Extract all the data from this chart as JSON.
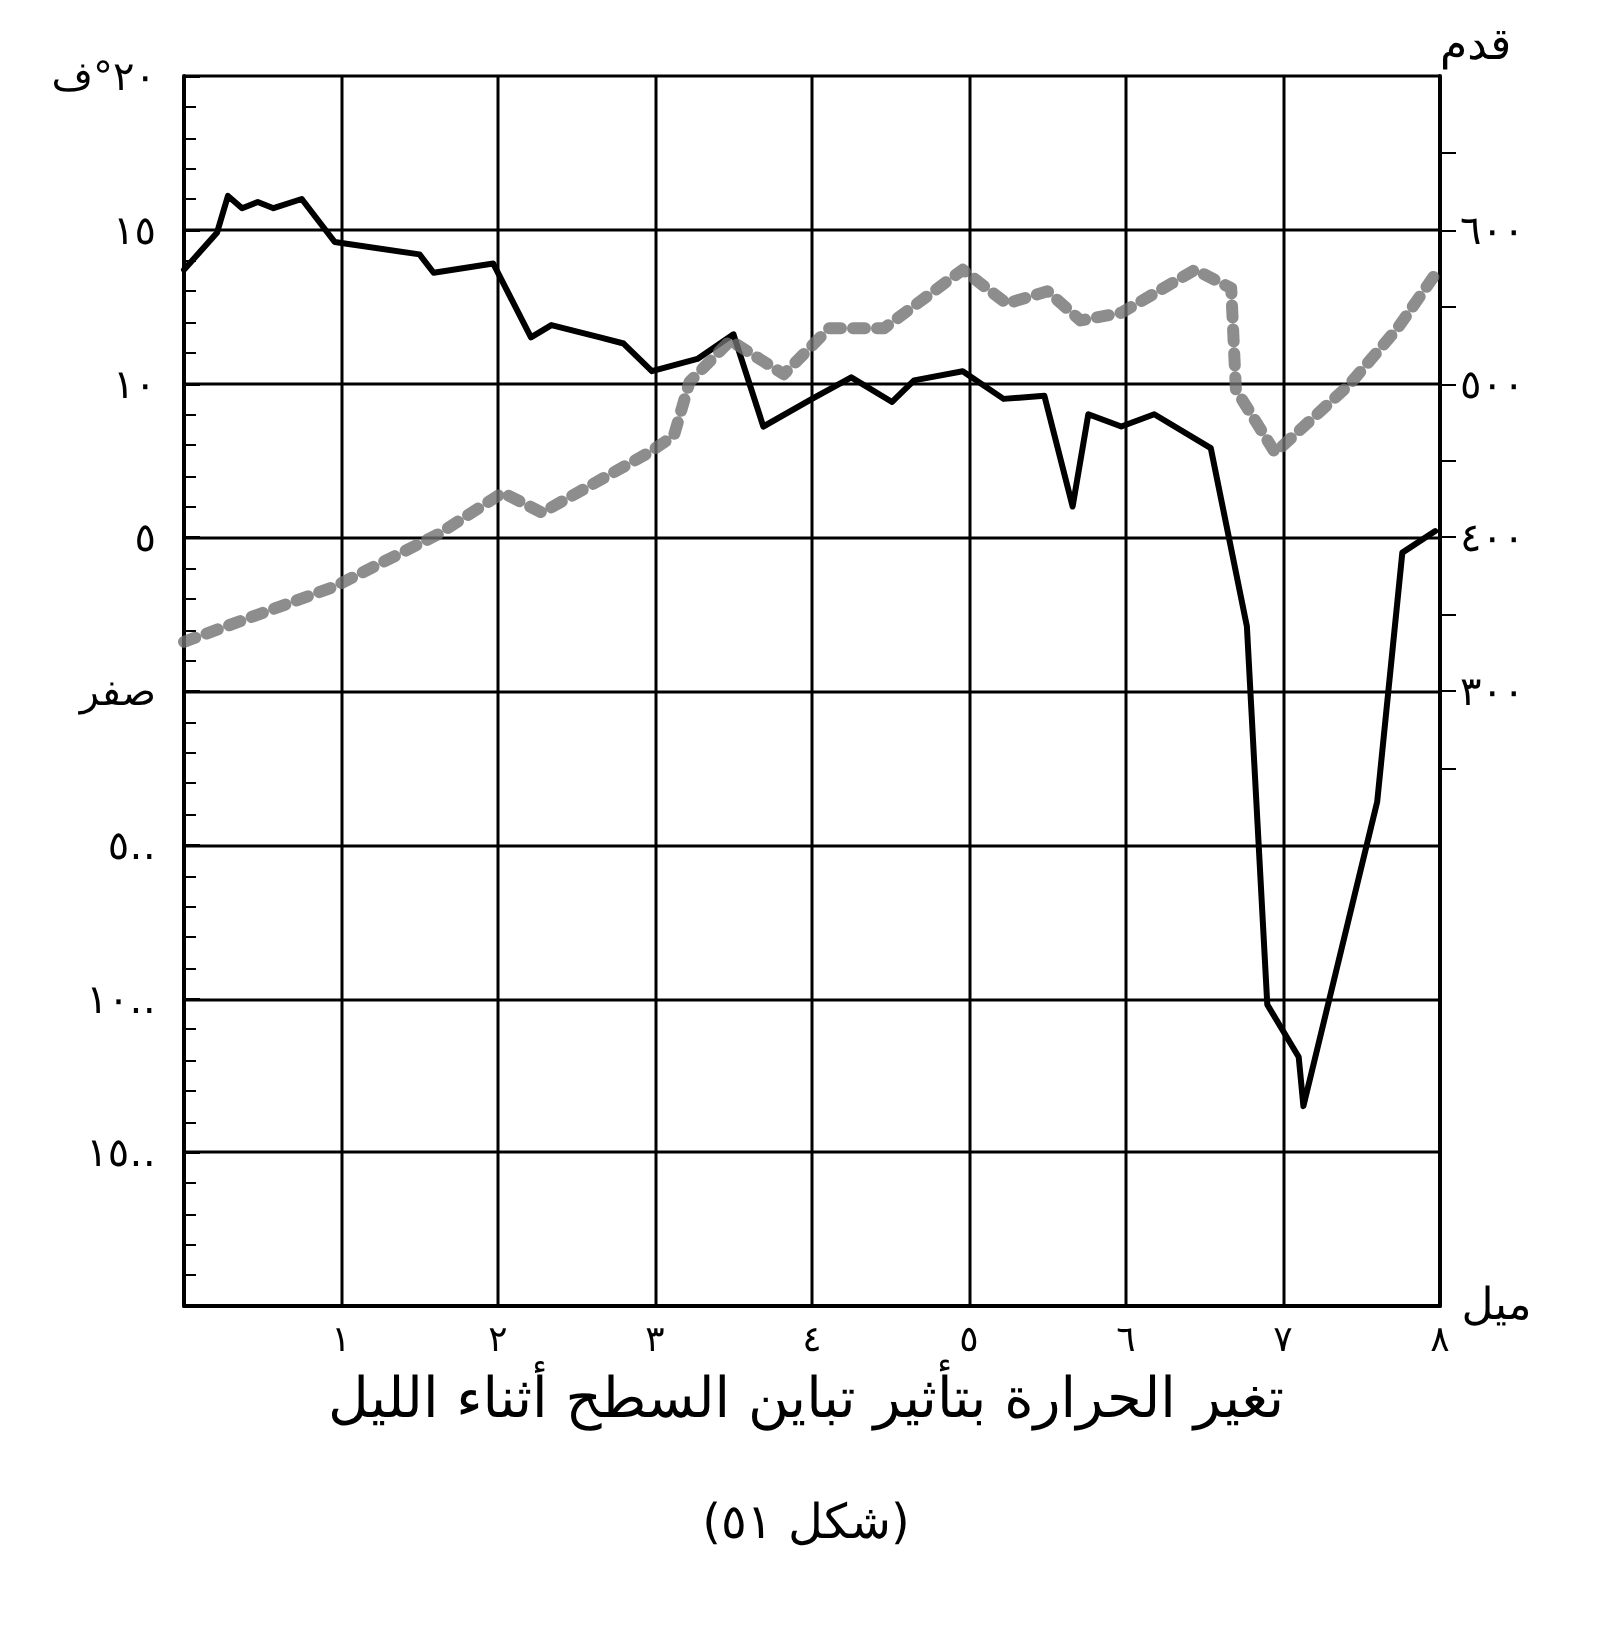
{
  "chart_data": {
    "type": "line",
    "title": "تغير الحرارة بتأثير تباين السطح أثناء الليل",
    "subtitle": "(شكل ٥١)",
    "xlabel": "ميل",
    "y2label": "قدم",
    "xlim": [
      0,
      8
    ],
    "xticks": [
      {
        "value": 0,
        "label": null
      },
      {
        "value": 1,
        "label": "١"
      },
      {
        "value": 2,
        "label": "٢"
      },
      {
        "value": 3,
        "label": "٣"
      },
      {
        "value": 4,
        "label": "٤"
      },
      {
        "value": 5,
        "label": "٥"
      },
      {
        "value": 6,
        "label": "٦"
      },
      {
        "value": 7,
        "label": "٧"
      },
      {
        "value": 8,
        "label": "٨"
      }
    ],
    "ylim": [
      -20,
      20
    ],
    "yticks": [
      {
        "value": 20,
        "label": "٢٠°ف"
      },
      {
        "value": 15,
        "label": "١٥"
      },
      {
        "value": 10,
        "label": "١٠"
      },
      {
        "value": 5,
        "label": "٥"
      },
      {
        "value": 0,
        "label": "صفر"
      },
      {
        "value": -5,
        "label": "٥‥"
      },
      {
        "value": -10,
        "label": "١٠‥"
      },
      {
        "value": -15,
        "label": "١٥‥"
      }
    ],
    "y2lim": [
      -100,
      700
    ],
    "y2ticks": [
      {
        "value": 650,
        "label": null
      },
      {
        "value": 600,
        "label": "٦٠٠"
      },
      {
        "value": 550,
        "label": null
      },
      {
        "value": 500,
        "label": "٥٠٠"
      },
      {
        "value": 450,
        "label": null
      },
      {
        "value": 400,
        "label": "٤٠٠"
      },
      {
        "value": 350,
        "label": null
      },
      {
        "value": 300,
        "label": "٣٠٠"
      },
      {
        "value": 250,
        "label": null
      }
    ],
    "grid": true,
    "marker": "none",
    "series": [
      {
        "color": "#000000",
        "line_style": "solid",
        "x": [
          0,
          0.21,
          0.28,
          0.37,
          0.47,
          0.57,
          0.75,
          0.96,
          1.5,
          1.59,
          1.97,
          2.21,
          2.34,
          2.65,
          2.8,
          2.98,
          3.27,
          3.5,
          3.69,
          4.0,
          4.25,
          4.51,
          4.65,
          4.96,
          5.22,
          5.48,
          5.66,
          5.76,
          5.97,
          6.18,
          6.54,
          6.77,
          6.9,
          7.1,
          7.13,
          7.6,
          7.76,
          7.97
        ],
        "values": [
          13.7,
          14.9,
          16.1,
          15.7,
          15.9,
          15.7,
          16.0,
          14.6,
          14.2,
          13.6,
          13.9,
          11.5,
          11.9,
          11.5,
          11.3,
          10.4,
          10.8,
          11.6,
          8.6,
          9.5,
          10.2,
          9.4,
          10.1,
          10.4,
          9.5,
          9.6,
          6.0,
          9.0,
          8.6,
          9.0,
          7.9,
          2.1,
          -10.2,
          -11.9,
          -13.5,
          -3.6,
          4.5,
          5.2
        ]
      },
      {
        "color": "#707070",
        "line_style": "dotted",
        "axis": "y2",
        "x": [
          0,
          0.96,
          1.62,
          2.03,
          2.28,
          2.96,
          3.12,
          3.22,
          3.48,
          3.82,
          4.11,
          4.46,
          4.96,
          5.24,
          5.5,
          5.71,
          5.97,
          6.44,
          6.67,
          6.7,
          6.95,
          7.42,
          7.73,
          7.97
        ],
        "values": [
          332,
          368,
          402,
          429,
          416,
          455,
          466,
          501,
          528,
          506,
          536,
          536,
          574,
          552,
          560,
          541,
          546,
          574,
          562,
          496,
          455,
          499,
          536,
          571
        ]
      }
    ]
  }
}
